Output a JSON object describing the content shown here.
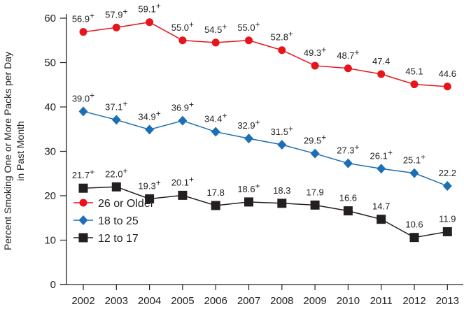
{
  "chart_data": {
    "type": "line",
    "title": "",
    "xlabel": "",
    "ylabel": "Percent Smoking One or More Packs per Day in Past Month",
    "ylabel_lines": [
      "Percent Smoking One or More Packs per Day",
      "in Past Month"
    ],
    "x": [
      2002,
      2003,
      2004,
      2005,
      2006,
      2007,
      2008,
      2009,
      2010,
      2011,
      2012,
      2013
    ],
    "ylim": [
      0,
      60
    ],
    "yticks": [
      0,
      10,
      20,
      30,
      40,
      50,
      60
    ],
    "grid": false,
    "legend_placement": "lower-left",
    "significance_marker": "+",
    "series": [
      {
        "name": "26 or Older",
        "color": "#e8141c",
        "marker": "circle",
        "values": [
          56.9,
          57.9,
          59.1,
          55.0,
          54.5,
          55.0,
          52.8,
          49.3,
          48.7,
          47.4,
          45.1,
          44.6
        ],
        "labels": [
          "56.9",
          "57.9",
          "59.1",
          "55.0",
          "54.5",
          "55.0",
          "52.8",
          "49.3",
          "48.7",
          "47.4",
          "45.1",
          "44.6"
        ],
        "significant": [
          true,
          true,
          true,
          true,
          true,
          true,
          true,
          true,
          true,
          false,
          false,
          false
        ]
      },
      {
        "name": "18 to 25",
        "color": "#1c6fb5",
        "marker": "diamond",
        "values": [
          39.0,
          37.1,
          34.9,
          36.9,
          34.4,
          32.9,
          31.5,
          29.5,
          27.3,
          26.1,
          25.1,
          22.2
        ],
        "labels": [
          "39.0",
          "37.1",
          "34.9",
          "36.9",
          "34.4",
          "32.9",
          "31.5",
          "29.5",
          "27.3",
          "26.1",
          "25.1",
          "22.2"
        ],
        "significant": [
          true,
          true,
          true,
          true,
          true,
          true,
          true,
          true,
          true,
          true,
          true,
          false
        ]
      },
      {
        "name": "12 to 17",
        "color": "#231f20",
        "marker": "square",
        "values": [
          21.7,
          22.0,
          19.3,
          20.1,
          17.8,
          18.6,
          18.3,
          17.9,
          16.6,
          14.7,
          10.6,
          11.9
        ],
        "labels": [
          "21.7",
          "22.0",
          "19.3",
          "20.1",
          "17.8",
          "18.6",
          "18.3",
          "17.9",
          "16.6",
          "14.7",
          "10.6",
          "11.9"
        ],
        "significant": [
          true,
          true,
          true,
          true,
          false,
          true,
          false,
          false,
          false,
          false,
          false,
          false
        ]
      }
    ]
  }
}
